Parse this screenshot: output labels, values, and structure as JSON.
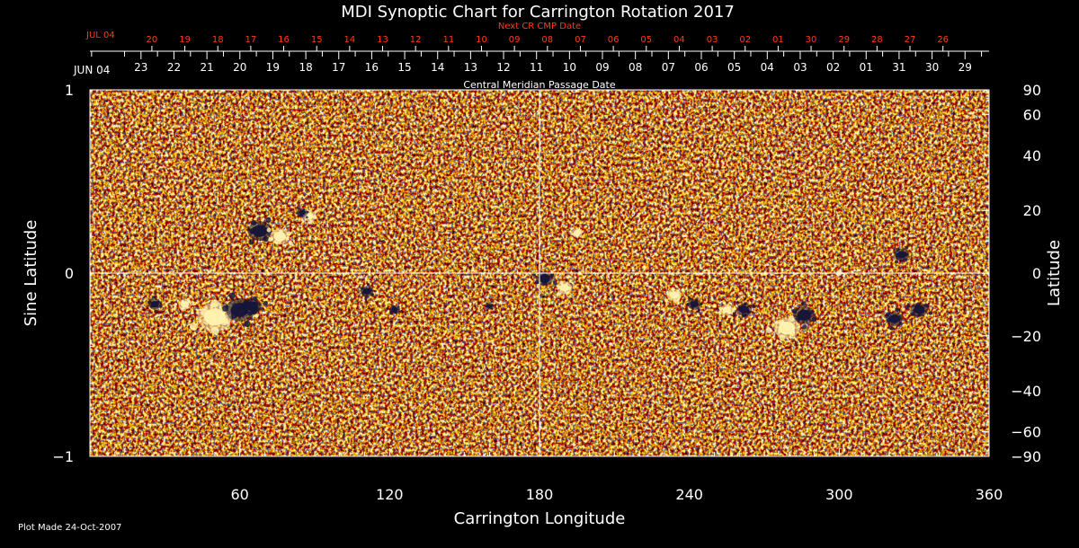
{
  "colors": {
    "background": "#000000",
    "axis": "#ffffff",
    "secondary_labels": "#ff3b1a",
    "map_base": "#e8561a",
    "map_positive": "#fff3b0",
    "map_negative": "#14143a"
  },
  "chart_data": {
    "type": "heatmap",
    "title": "MDI Synoptic Chart for Carrington Rotation 2017",
    "xlabel": "Carrington Longitude",
    "ylabel_left": "Sine Latitude",
    "ylabel_right": "Latitude",
    "xlim": [
      0,
      360
    ],
    "ylim_sine": [
      -1,
      1
    ],
    "x_ticks": [
      60,
      120,
      180,
      240,
      300,
      360
    ],
    "y_ticks_left": [
      {
        "value": 1,
        "label": "1"
      },
      {
        "value": 0,
        "label": "0"
      },
      {
        "value": -1,
        "label": "−1"
      }
    ],
    "y_ticks_right": [
      90,
      60,
      40,
      20,
      0,
      -20,
      -40,
      -60,
      -90
    ],
    "y_tick_labels_right": [
      "90",
      "60",
      "40",
      "20",
      "0",
      "−20",
      "−40",
      "−60",
      "−90"
    ],
    "gridlines": {
      "longitude": [
        180
      ],
      "sine_latitude": [
        0
      ]
    },
    "top_axis": {
      "label": "Central Meridian Passage Date",
      "start_label": "JUN 04",
      "dates": [
        "23",
        "22",
        "21",
        "20",
        "19",
        "18",
        "17",
        "16",
        "15",
        "14",
        "13",
        "12",
        "11",
        "10",
        "09",
        "08",
        "07",
        "06",
        "05",
        "04",
        "03",
        "02",
        "01",
        "31",
        "30",
        "29"
      ]
    },
    "top_axis_next": {
      "label": "Next CR CMP Date",
      "start_label": "JUL 04",
      "dates": [
        "20",
        "19",
        "18",
        "17",
        "16",
        "15",
        "14",
        "13",
        "12",
        "11",
        "10",
        "09",
        "08",
        "07",
        "06",
        "05",
        "04",
        "03",
        "02",
        "01",
        "30",
        "29",
        "28",
        "27",
        "26"
      ]
    },
    "active_regions": [
      {
        "lon": 68,
        "sinlat": 0.23,
        "polarity": "negative",
        "size": 1.1
      },
      {
        "lon": 76,
        "sinlat": 0.2,
        "polarity": "positive",
        "size": 0.9
      },
      {
        "lon": 88,
        "sinlat": 0.31,
        "polarity": "positive",
        "size": 0.6
      },
      {
        "lon": 85,
        "sinlat": 0.33,
        "polarity": "negative",
        "size": 0.5
      },
      {
        "lon": 50,
        "sinlat": -0.24,
        "polarity": "positive",
        "size": 1.6
      },
      {
        "lon": 60,
        "sinlat": -0.2,
        "polarity": "negative",
        "size": 1.3
      },
      {
        "lon": 65,
        "sinlat": -0.18,
        "polarity": "negative",
        "size": 0.9
      },
      {
        "lon": 26,
        "sinlat": -0.17,
        "polarity": "negative",
        "size": 0.6
      },
      {
        "lon": 38,
        "sinlat": -0.17,
        "polarity": "positive",
        "size": 0.6
      },
      {
        "lon": 111,
        "sinlat": -0.1,
        "polarity": "negative",
        "size": 0.6
      },
      {
        "lon": 122,
        "sinlat": -0.2,
        "polarity": "negative",
        "size": 0.5
      },
      {
        "lon": 160,
        "sinlat": -0.18,
        "polarity": "negative",
        "size": 0.4
      },
      {
        "lon": 182,
        "sinlat": -0.03,
        "polarity": "negative",
        "size": 0.8
      },
      {
        "lon": 190,
        "sinlat": -0.08,
        "polarity": "positive",
        "size": 0.7
      },
      {
        "lon": 195,
        "sinlat": 0.22,
        "polarity": "positive",
        "size": 0.5
      },
      {
        "lon": 234,
        "sinlat": -0.12,
        "polarity": "positive",
        "size": 0.7
      },
      {
        "lon": 242,
        "sinlat": -0.17,
        "polarity": "negative",
        "size": 0.6
      },
      {
        "lon": 262,
        "sinlat": -0.2,
        "polarity": "negative",
        "size": 0.7
      },
      {
        "lon": 255,
        "sinlat": -0.2,
        "polarity": "positive",
        "size": 0.6
      },
      {
        "lon": 279,
        "sinlat": -0.3,
        "polarity": "positive",
        "size": 1.2
      },
      {
        "lon": 286,
        "sinlat": -0.23,
        "polarity": "negative",
        "size": 1.0
      },
      {
        "lon": 300,
        "sinlat": 0.0,
        "polarity": "positive",
        "size": 0.3
      },
      {
        "lon": 322,
        "sinlat": -0.25,
        "polarity": "negative",
        "size": 0.8
      },
      {
        "lon": 332,
        "sinlat": -0.2,
        "polarity": "negative",
        "size": 0.8
      },
      {
        "lon": 325,
        "sinlat": 0.1,
        "polarity": "negative",
        "size": 0.7
      }
    ]
  },
  "footer": {
    "plot_made": "Plot Made 24-Oct-2007"
  }
}
